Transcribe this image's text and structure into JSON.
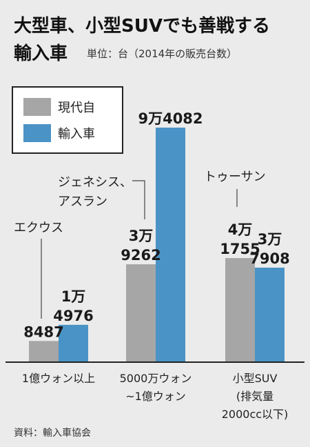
{
  "title_line1": "大型車、小型SUVでも善戦する",
  "title_line2": "輸入車",
  "unit_note": "単位：台（2014年の販売台数）",
  "source": "資料：輸入車協会",
  "colors": {
    "hyundai": "#a6a6a6",
    "imported": "#4a93c6",
    "background": "#ebebeb"
  },
  "chart_data": {
    "type": "bar",
    "categories": [
      "1億ウォン以上",
      "5000万ウォン~1億ウォン",
      "小型SUV(排気量2000cc以下)"
    ],
    "category_label_lines": [
      [
        "1億ウォン以上"
      ],
      [
        "5000万ウォン",
        "~1億ウォン"
      ],
      [
        "小型SUV",
        "(排気量",
        "2000cc以下)"
      ]
    ],
    "series": [
      {
        "name": "現代自",
        "color": "#a6a6a6",
        "values": [
          8487,
          39262,
          41755
        ],
        "labels": [
          [
            "8487"
          ],
          [
            "3万",
            "9262"
          ],
          [
            "4万",
            "1755"
          ]
        ]
      },
      {
        "name": "輸入車",
        "color": "#4a93c6",
        "values": [
          14976,
          94082,
          37908
        ],
        "labels": [
          [
            "1万",
            "4976"
          ],
          [
            "9万4082"
          ],
          [
            "3万",
            "7908"
          ]
        ]
      }
    ],
    "annotations": [
      {
        "category": 0,
        "series": 0,
        "lines": [
          "エクウス"
        ]
      },
      {
        "category": 1,
        "series": 0,
        "lines": [
          "ジェネシス、",
          "アスラン"
        ]
      },
      {
        "category": 2,
        "series": 0,
        "lines": [
          "トゥーサン"
        ]
      }
    ],
    "legend": "top-left",
    "grid": false,
    "ylim": [
      0,
      100000
    ]
  }
}
